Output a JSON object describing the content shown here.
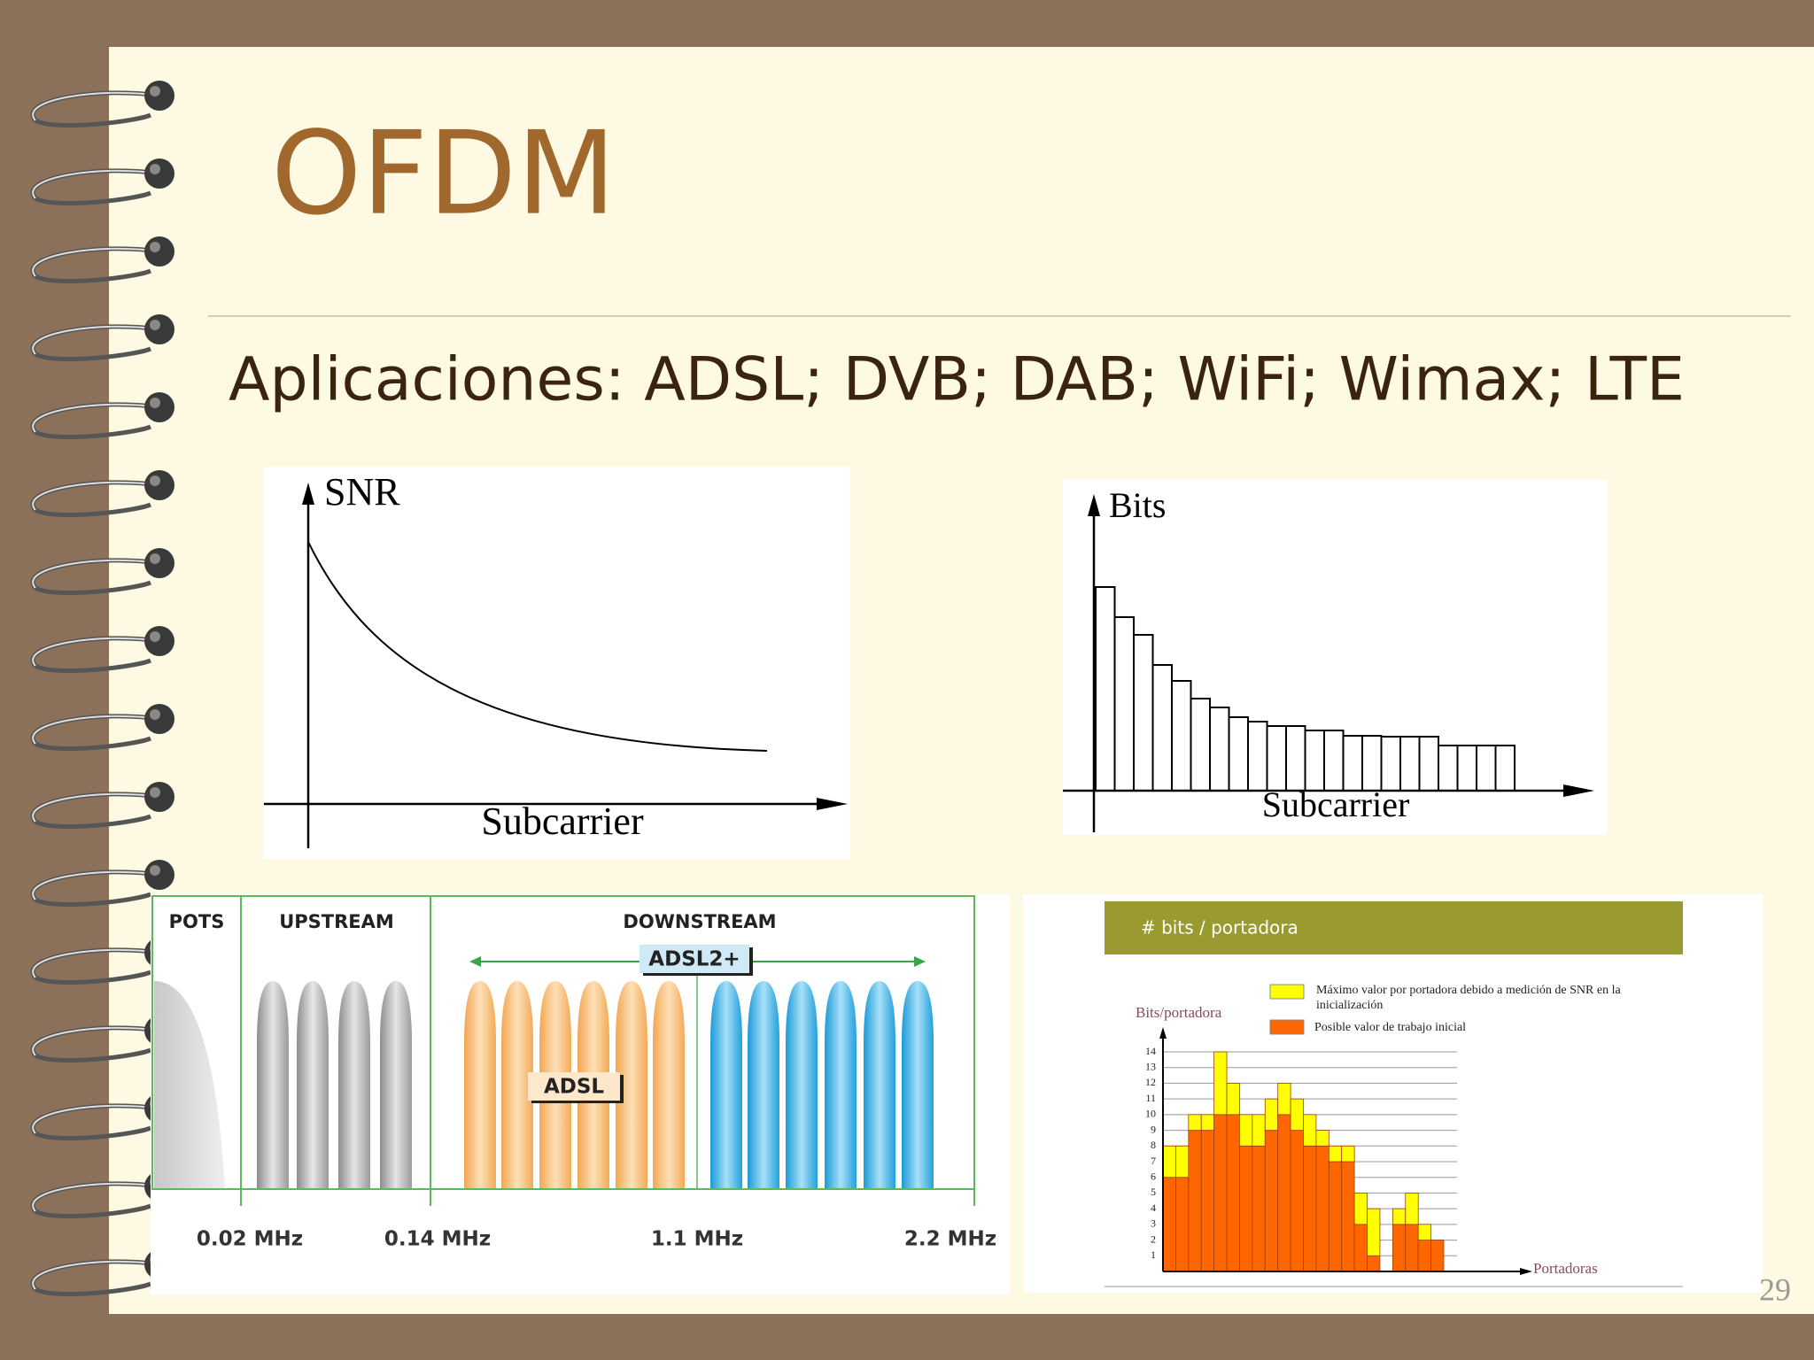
{
  "slide": {
    "title": "OFDM",
    "subtitle": "Aplicaciones: ADSL; DVB; DAB; WiFi; Wimax; LTE",
    "page_number": "29"
  },
  "snr_chart": {
    "y_label": "SNR",
    "x_label": "Subcarrier"
  },
  "bits_chart": {
    "y_label": "Bits",
    "x_label": "Subcarrier"
  },
  "adsl": {
    "pots": "POTS",
    "upstream": "UPSTREAM",
    "downstream": "DOWNSTREAM",
    "adsl2plus": "ADSL2+",
    "adsl": "ADSL",
    "frequencies": [
      "0.02 MHz",
      "0.14 MHz",
      "1.1 MHz",
      "2.2 MHz"
    ]
  },
  "chart_data": {
    "type": "bar",
    "stacked": true,
    "title": "# bits / portadora",
    "y_label": "Bits/portadora",
    "x_label": "Portadoras",
    "categories": [
      null,
      null,
      null,
      null,
      null,
      null,
      null,
      null,
      null,
      null,
      null,
      null,
      null,
      null,
      null,
      null,
      null,
      null,
      null,
      null,
      null,
      null
    ],
    "series": [
      {
        "name": "Posible valor de trabajo inicial",
        "color": "#ff6600",
        "values": [
          6,
          6,
          9,
          9,
          10,
          10,
          8,
          8,
          9,
          10,
          9,
          8,
          8,
          7,
          7,
          3,
          1,
          0,
          3,
          3,
          2,
          2
        ]
      },
      {
        "name": "Máximo valor por portadora debido a medición de SNR en la inicialización",
        "color": "#ffff00",
        "values": [
          2,
          2,
          1,
          1,
          4,
          2,
          2,
          2,
          2,
          2,
          2,
          2,
          1,
          1,
          1,
          2,
          3,
          0,
          1,
          2,
          1,
          0
        ]
      }
    ],
    "ylim": [
      0,
      14
    ],
    "yticks": [
      1,
      2,
      3,
      4,
      5,
      6,
      7,
      8,
      9,
      10,
      11,
      12,
      13,
      14
    ],
    "grid": true
  }
}
